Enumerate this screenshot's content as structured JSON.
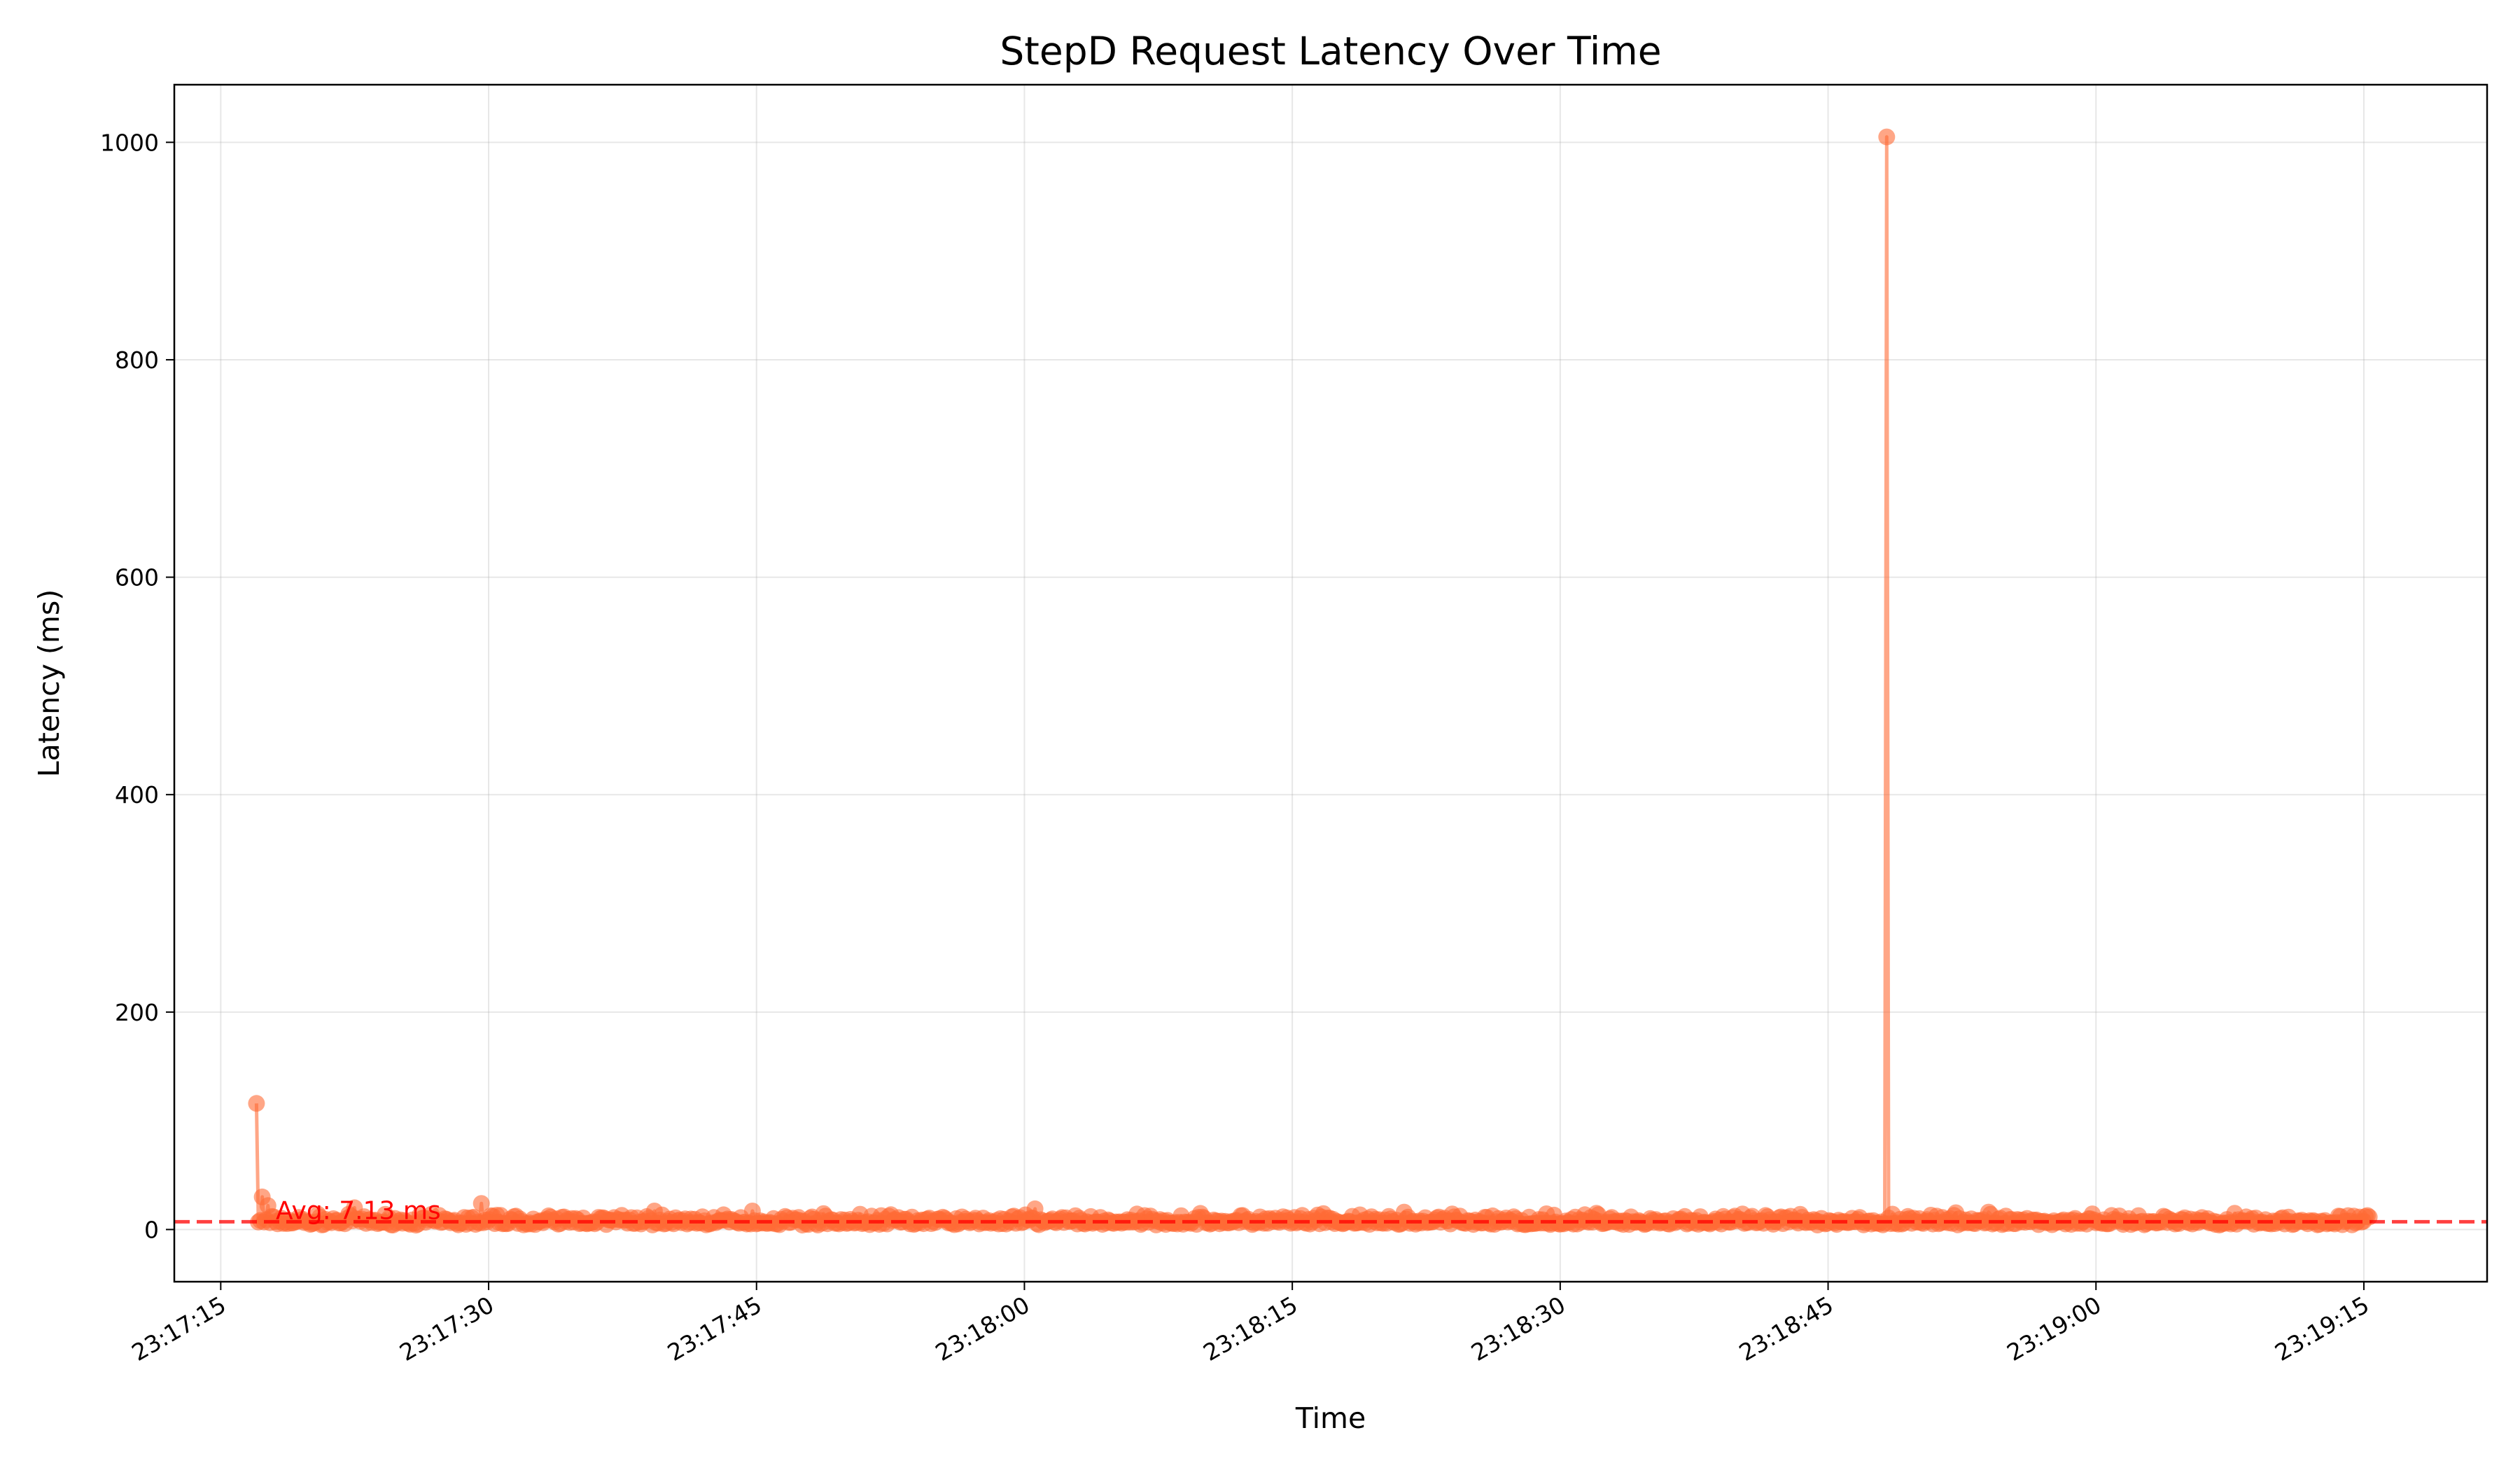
{
  "chart_data": {
    "type": "line",
    "title": "StepD Request Latency Over Time",
    "xlabel": "Time",
    "ylabel": "Latency (ms)",
    "x_type": "time",
    "xlim": [
      "23:17:12.4",
      "23:19:21.9"
    ],
    "ylim": [
      -48,
      1053
    ],
    "x_ticks": [
      "23:17:15",
      "23:17:30",
      "23:17:45",
      "23:18:00",
      "23:18:15",
      "23:18:30",
      "23:18:45",
      "23:19:00",
      "23:19:15"
    ],
    "y_ticks": [
      0,
      200,
      400,
      600,
      800,
      1000
    ],
    "grid": true,
    "series": [
      {
        "color": "#ff6b35",
        "marker": "circle",
        "x_start": "23:17:17.0",
        "x_end": "23:19:15.3",
        "baseline_range_ms": [
          4,
          14
        ],
        "spikes": [
          {
            "x": "23:17:17.0",
            "y": 116
          },
          {
            "x": "23:17:17.3",
            "y": 30
          },
          {
            "x": "23:17:17.6",
            "y": 22
          },
          {
            "x": "23:17:22.5",
            "y": 20
          },
          {
            "x": "23:17:29.6",
            "y": 24
          },
          {
            "x": "23:17:39.3",
            "y": 17
          },
          {
            "x": "23:17:44.8",
            "y": 17
          },
          {
            "x": "23:18:00.6",
            "y": 19
          },
          {
            "x": "23:18:21.3",
            "y": 16
          },
          {
            "x": "23:18:32.0",
            "y": 15
          },
          {
            "x": "23:18:48.3",
            "y": 1005
          },
          {
            "x": "23:18:54.0",
            "y": 16
          },
          {
            "x": "23:19:07.8",
            "y": 15
          }
        ]
      }
    ],
    "average_line": {
      "value": 7.13,
      "label": "Avg: 7.13 ms",
      "color": "#ff0000",
      "style": "dashed"
    }
  }
}
